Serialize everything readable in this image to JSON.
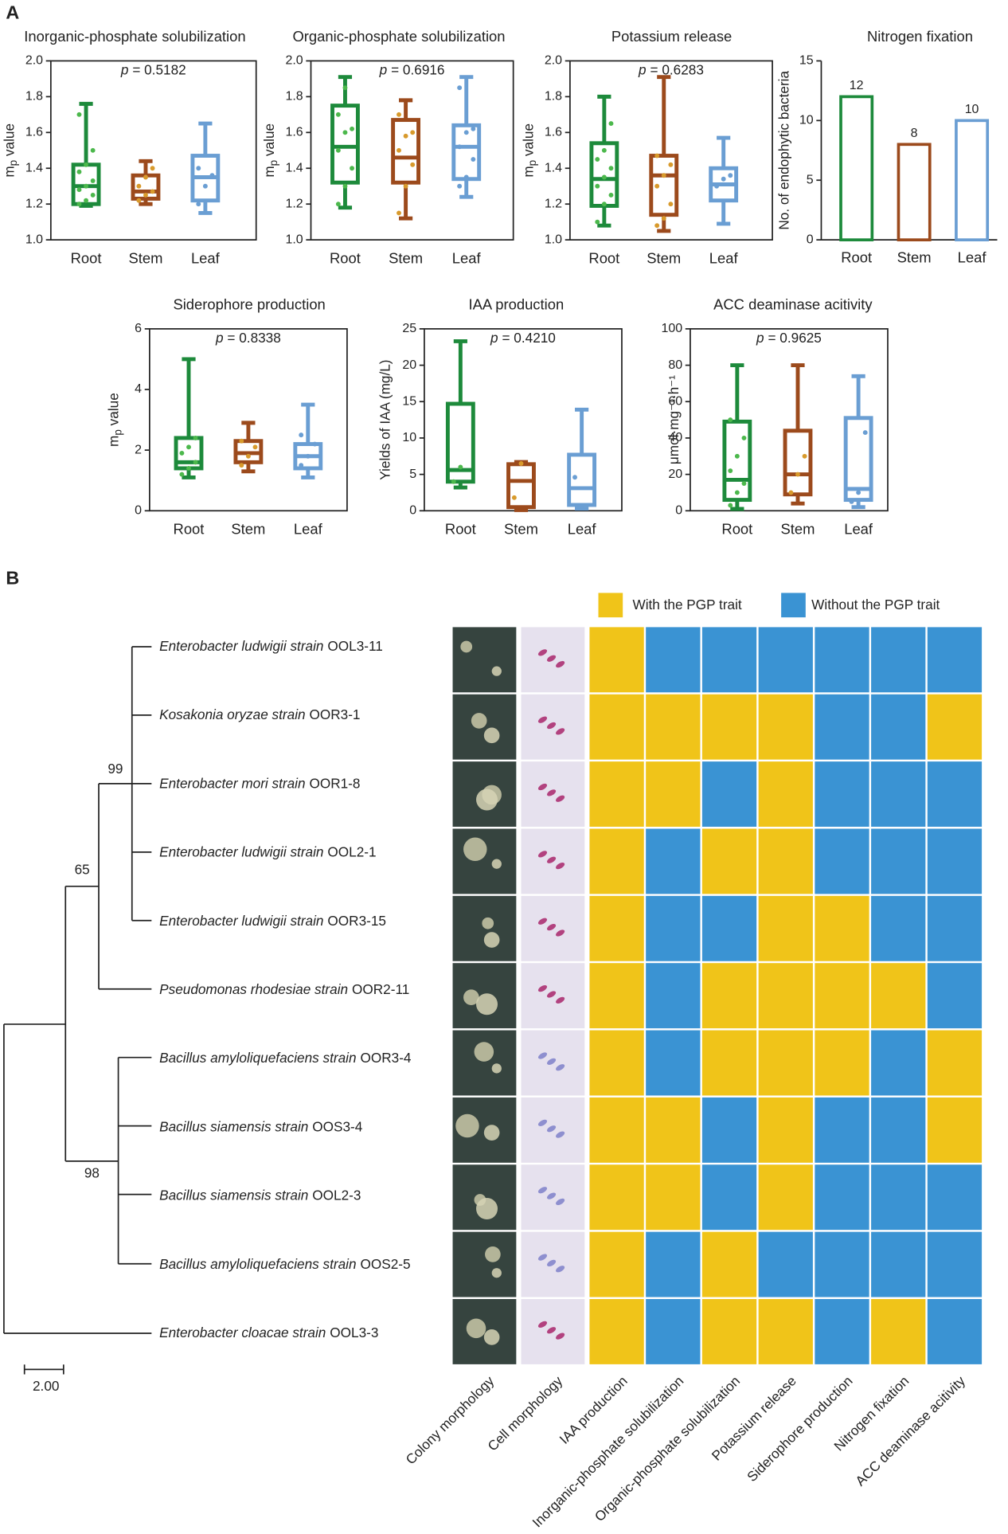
{
  "panels": [
    "A",
    "B"
  ],
  "chart_data": [
    {
      "type": "box",
      "title": "Inorganic-phosphate solubilization",
      "ylabel": {
        "base": "m",
        "sub": "p",
        "rest": " value"
      },
      "annotation": {
        "symbol": "p",
        "text": "= 0.5182"
      },
      "ylim": [
        1.0,
        2.0
      ],
      "yticks": [
        {
          "value": 1,
          "label": "1.0"
        },
        1.2,
        1.4,
        1.6,
        1.8,
        {
          "value": 2,
          "label": "2.0"
        }
      ],
      "frame": true,
      "series": [
        {
          "name": "Root",
          "color": "#1d8a3b",
          "point_color": "#4cb84c",
          "min": 1.19,
          "q1": 1.2,
          "median": 1.3,
          "q3": 1.42,
          "max": 1.76,
          "points": [
            1.2,
            1.22,
            1.25,
            1.28,
            1.3,
            1.33,
            1.38,
            1.42,
            1.5,
            1.7
          ]
        },
        {
          "name": "Stem",
          "color": "#9c4a1c",
          "point_color": "#d89a2c",
          "min": 1.2,
          "q1": 1.23,
          "median": 1.27,
          "q3": 1.36,
          "max": 1.44,
          "points": [
            1.22,
            1.25,
            1.27,
            1.3,
            1.35,
            1.4
          ]
        },
        {
          "name": "Leaf",
          "color": "#6a9ed3",
          "point_color": "#6a9ed3",
          "min": 1.15,
          "q1": 1.22,
          "median": 1.35,
          "q3": 1.47,
          "max": 1.65,
          "points": [
            1.2,
            1.3,
            1.36,
            1.4
          ]
        }
      ]
    },
    {
      "type": "box",
      "title": "Organic-phosphate solubilization",
      "ylabel": {
        "base": "m",
        "sub": "p",
        "rest": " value"
      },
      "annotation": {
        "symbol": "p",
        "text": "= 0.6916"
      },
      "ylim": [
        1.0,
        2.0
      ],
      "yticks": [
        {
          "value": 1,
          "label": "1.0"
        },
        1.2,
        1.4,
        1.6,
        1.8,
        {
          "value": 2,
          "label": "2.0"
        }
      ],
      "frame": true,
      "series": [
        {
          "name": "Root",
          "color": "#1d8a3b",
          "point_color": "#4cb84c",
          "min": 1.18,
          "q1": 1.32,
          "median": 1.52,
          "q3": 1.75,
          "max": 1.91,
          "points": [
            1.2,
            1.3,
            1.4,
            1.5,
            1.6,
            1.62,
            1.7,
            1.85
          ]
        },
        {
          "name": "Stem",
          "color": "#9c4a1c",
          "point_color": "#d89a2c",
          "min": 1.12,
          "q1": 1.32,
          "median": 1.46,
          "q3": 1.67,
          "max": 1.78,
          "points": [
            1.15,
            1.3,
            1.42,
            1.5,
            1.58,
            1.6,
            1.7
          ]
        },
        {
          "name": "Leaf",
          "color": "#6a9ed3",
          "point_color": "#6a9ed3",
          "min": 1.24,
          "q1": 1.34,
          "median": 1.52,
          "q3": 1.64,
          "max": 1.91,
          "points": [
            1.3,
            1.35,
            1.45,
            1.52,
            1.6,
            1.62,
            1.85
          ]
        }
      ]
    },
    {
      "type": "box",
      "title": "Potassium release",
      "ylabel": {
        "base": "m",
        "sub": "p",
        "rest": " value"
      },
      "annotation": {
        "symbol": "p",
        "text": "= 0.6283"
      },
      "ylim": [
        1.0,
        2.0
      ],
      "yticks": [
        {
          "value": 1,
          "label": "1.0"
        },
        1.2,
        1.4,
        1.6,
        1.8,
        {
          "value": 2,
          "label": "2.0"
        }
      ],
      "frame": true,
      "series": [
        {
          "name": "Root",
          "color": "#1d8a3b",
          "point_color": "#4cb84c",
          "min": 1.08,
          "q1": 1.19,
          "median": 1.34,
          "q3": 1.54,
          "max": 1.8,
          "points": [
            1.1,
            1.2,
            1.25,
            1.3,
            1.35,
            1.4,
            1.45,
            1.5,
            1.65
          ]
        },
        {
          "name": "Stem",
          "color": "#9c4a1c",
          "point_color": "#d89a2c",
          "min": 1.05,
          "q1": 1.14,
          "median": 1.36,
          "q3": 1.47,
          "max": 1.91,
          "points": [
            1.08,
            1.12,
            1.2,
            1.3,
            1.36,
            1.42,
            1.47
          ]
        },
        {
          "name": "Leaf",
          "color": "#6a9ed3",
          "point_color": "#6a9ed3",
          "min": 1.09,
          "q1": 1.22,
          "median": 1.31,
          "q3": 1.4,
          "max": 1.57,
          "points": [
            1.3,
            1.34,
            1.36
          ]
        }
      ]
    },
    {
      "type": "bar",
      "title": "Nitrogen fixation",
      "ylabel": "No. of endophytic bacteria",
      "categories": [
        "Root",
        "Stem",
        "Leaf"
      ],
      "values": [
        12,
        8,
        10
      ],
      "colors": [
        "#1d8a3b",
        "#9c4a1c",
        "#6a9ed3"
      ],
      "ylim": [
        0,
        15
      ],
      "yticks": [
        0,
        5,
        10,
        15
      ],
      "frame": false
    },
    {
      "type": "box",
      "title": "Siderophore production",
      "ylabel": {
        "base": "m",
        "sub": "p",
        "rest": " value"
      },
      "annotation": {
        "symbol": "p",
        "text": "= 0.8338"
      },
      "ylim": [
        0,
        6
      ],
      "yticks": [
        0,
        2,
        4,
        6
      ],
      "frame": true,
      "series": [
        {
          "name": "Root",
          "color": "#1d8a3b",
          "point_color": "#4cb84c",
          "min": 1.1,
          "q1": 1.4,
          "median": 1.6,
          "q3": 2.4,
          "max": 5.0,
          "points": [
            1.2,
            1.4,
            1.6,
            1.9,
            2.1,
            2.4
          ]
        },
        {
          "name": "Stem",
          "color": "#9c4a1c",
          "point_color": "#d89a2c",
          "min": 1.3,
          "q1": 1.6,
          "median": 1.9,
          "q3": 2.3,
          "max": 2.9,
          "points": [
            1.5,
            1.8,
            2.1,
            2.3
          ]
        },
        {
          "name": "Leaf",
          "color": "#6a9ed3",
          "point_color": "#6a9ed3",
          "min": 1.1,
          "q1": 1.4,
          "median": 1.8,
          "q3": 2.2,
          "max": 3.5,
          "points": [
            1.5,
            1.8,
            2.2,
            2.5
          ]
        }
      ]
    },
    {
      "type": "box",
      "title": "IAA production",
      "ylabel": "Yields of IAA (mg/L)",
      "annotation": {
        "symbol": "p",
        "text": "= 0.4210"
      },
      "ylim": [
        0,
        25
      ],
      "yticks": [
        0,
        5,
        10,
        15,
        20,
        25
      ],
      "frame": true,
      "series": [
        {
          "name": "Root",
          "color": "#1d8a3b",
          "point_color": "#4cb84c",
          "min": 3.2,
          "q1": 4.0,
          "median": 5.6,
          "q3": 14.7,
          "max": 23.3,
          "points": [
            4.0,
            6.0
          ]
        },
        {
          "name": "Stem",
          "color": "#9c4a1c",
          "point_color": "#d89a2c",
          "min": 0.1,
          "q1": 0.5,
          "median": 4.1,
          "q3": 6.4,
          "max": 6.7,
          "points": [
            1.8,
            6.5
          ]
        },
        {
          "name": "Leaf",
          "color": "#6a9ed3",
          "point_color": "#6a9ed3",
          "min": 0.3,
          "q1": 0.8,
          "median": 3.1,
          "q3": 7.7,
          "max": 13.9,
          "points": [
            4.6
          ]
        }
      ]
    },
    {
      "type": "box",
      "title": "ACC deaminase acitivity",
      "ylabel": "μmol·mg⁻¹·h⁻¹",
      "annotation": {
        "symbol": "p",
        "text": "= 0.9625"
      },
      "ylim": [
        0,
        100
      ],
      "yticks": [
        0,
        20,
        40,
        60,
        80,
        100
      ],
      "frame": true,
      "series": [
        {
          "name": "Root",
          "color": "#1d8a3b",
          "point_color": "#4cb84c",
          "min": 1,
          "q1": 6,
          "median": 17,
          "q3": 49,
          "max": 80,
          "points": [
            3,
            10,
            15,
            22,
            30,
            40,
            50
          ]
        },
        {
          "name": "Stem",
          "color": "#9c4a1c",
          "point_color": "#d89a2c",
          "min": 4,
          "q1": 9,
          "median": 20,
          "q3": 44,
          "max": 80,
          "points": [
            10,
            20,
            30
          ]
        },
        {
          "name": "Leaf",
          "color": "#6a9ed3",
          "point_color": "#6a9ed3",
          "min": 2,
          "q1": 6,
          "median": 12,
          "q3": 51,
          "max": 74,
          "points": [
            5,
            10,
            43
          ]
        }
      ]
    },
    {
      "type": "tree-heatmap",
      "legend": [
        {
          "name": "With the PGP trait",
          "color": "#f0c419",
          "value": 1
        },
        {
          "name": "Without the PGP trait",
          "color": "#3a93d3",
          "value": 0
        }
      ],
      "rows": [
        {
          "species": "Enterobacter ludwigii strain",
          "id": "OOL3-11"
        },
        {
          "species": "Kosakonia oryzae strain",
          "id": "OOR3-1"
        },
        {
          "species": "Enterobacter mori strain",
          "id": "OOR1-8"
        },
        {
          "species": "Enterobacter ludwigii strain",
          "id": "OOL2-1"
        },
        {
          "species": "Enterobacter ludwigii strain",
          "id": "OOR3-15"
        },
        {
          "species": "Pseudomonas rhodesiae strain",
          "id": "OOR2-11"
        },
        {
          "species": "Bacillus amyloliquefaciens strain",
          "id": "OOR3-4"
        },
        {
          "species": "Bacillus siamensis strain",
          "id": "OOS3-4"
        },
        {
          "species": "Bacillus siamensis strain",
          "id": "OOL2-3"
        },
        {
          "species": "Bacillus amyloliquefaciens strain",
          "id": "OOS2-5"
        },
        {
          "species": "Enterobacter cloacae strain",
          "id": "OOL3-3"
        }
      ],
      "image_columns": [
        "Colony morphology",
        "Cell morphology"
      ],
      "traits": [
        "IAA production",
        "Inorganic-phosphate solubilization",
        "Organic-phosphate solubilization",
        "Potassium release",
        "Siderophore production",
        "Nitrogen fixation",
        "ACC deaminase acitivity"
      ],
      "matrix": [
        [
          1,
          0,
          0,
          0,
          0,
          0,
          0
        ],
        [
          1,
          1,
          1,
          1,
          0,
          0,
          1
        ],
        [
          1,
          1,
          0,
          1,
          0,
          0,
          0
        ],
        [
          1,
          0,
          1,
          1,
          0,
          0,
          0
        ],
        [
          1,
          0,
          0,
          1,
          1,
          0,
          0
        ],
        [
          1,
          0,
          1,
          1,
          1,
          1,
          0
        ],
        [
          1,
          0,
          1,
          1,
          1,
          0,
          1
        ],
        [
          1,
          1,
          0,
          1,
          0,
          0,
          1
        ],
        [
          1,
          1,
          0,
          1,
          0,
          0,
          0
        ],
        [
          1,
          0,
          1,
          0,
          0,
          0,
          0
        ],
        [
          1,
          0,
          1,
          1,
          0,
          1,
          0
        ]
      ],
      "bootstrap": [
        99,
        65,
        98
      ],
      "scale_bar": {
        "value": 2,
        "label": "2.00"
      }
    }
  ]
}
